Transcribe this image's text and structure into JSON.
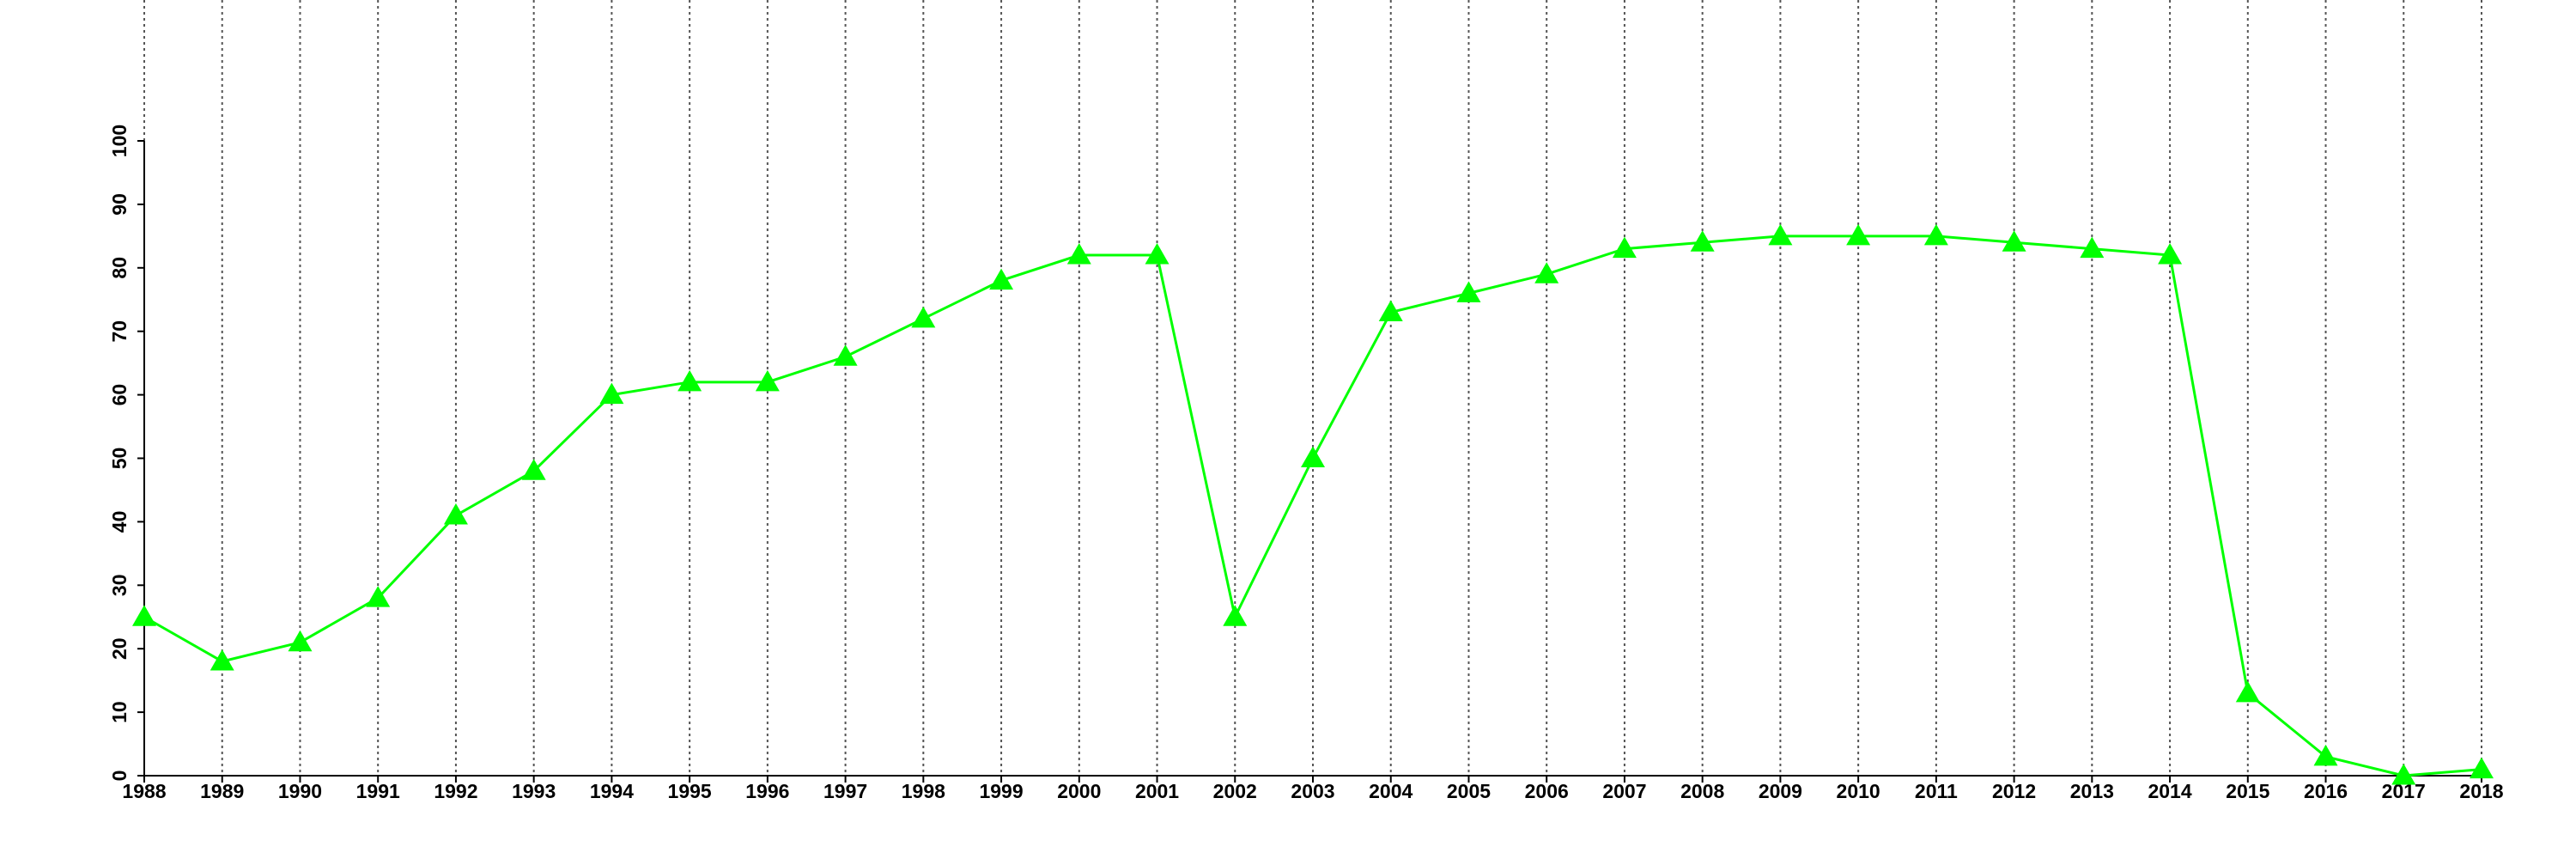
{
  "chart_data": {
    "type": "line",
    "x": [
      1988,
      1989,
      1990,
      1991,
      1992,
      1993,
      1994,
      1995,
      1996,
      1997,
      1998,
      1999,
      2000,
      2001,
      2002,
      2003,
      2004,
      2005,
      2006,
      2007,
      2008,
      2009,
      2010,
      2011,
      2012,
      2013,
      2014,
      2015,
      2016,
      2017,
      2018
    ],
    "series": [
      {
        "color": "#00ff00",
        "values": [
          25,
          18,
          21,
          28,
          41,
          48,
          60,
          62,
          62,
          66,
          72,
          78,
          82,
          82,
          25,
          50,
          73,
          76,
          79,
          83,
          84,
          85,
          85,
          85,
          84,
          83,
          82,
          13,
          3,
          0,
          1
        ]
      }
    ],
    "xlim": [
      1988,
      2018
    ],
    "xticks": [
      1988,
      1989,
      1990,
      1991,
      1992,
      1993,
      1994,
      1995,
      1996,
      1997,
      1998,
      1999,
      2000,
      2001,
      2002,
      2003,
      2004,
      2005,
      2006,
      2007,
      2008,
      2009,
      2010,
      2011,
      2012,
      2013,
      2014,
      2015,
      2016,
      2017,
      2018
    ],
    "ylim": [
      0,
      100
    ],
    "yticks": [
      0,
      10,
      20,
      30,
      40,
      50,
      60,
      70,
      80,
      90,
      100
    ],
    "grid": true
  }
}
